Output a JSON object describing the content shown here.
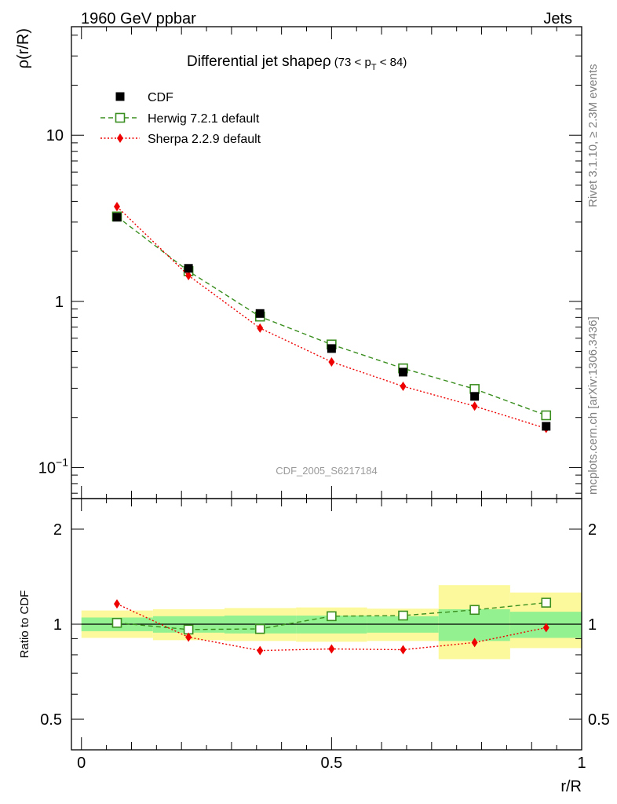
{
  "header": {
    "left": "1960 GeV ppbar",
    "right": "Jets"
  },
  "side_labels": {
    "top": "Rivet 3.1.10, ≥ 2.3M events",
    "bottom": "mcplots.cern.ch [arXiv:1306.3436]"
  },
  "chart_data": [
    {
      "type": "line",
      "panel": "main",
      "title": "Differential jet shapeρ",
      "title_suffix": "(73 < p",
      "title_sub": "T",
      "title_end": " < 84)",
      "ylabel": "ρ(r/R)",
      "watermark": "CDF_2005_S6217184",
      "yscale": "log",
      "ylim": [
        0.065,
        45
      ],
      "xlim": [
        -0.02,
        1.0
      ],
      "yticks": [
        {
          "value": 10,
          "label": "10"
        },
        {
          "value": 1,
          "label": "1"
        },
        {
          "value": 0.1,
          "label": "10",
          "exp": "−1"
        }
      ],
      "legend_position": "top-left",
      "series": [
        {
          "name": "CDF",
          "color": "#000000",
          "style": "square-filled",
          "x": [
            0.071,
            0.214,
            0.357,
            0.5,
            0.643,
            0.786,
            0.929
          ],
          "y": [
            3.21,
            1.58,
            0.845,
            0.52,
            0.375,
            0.268,
            0.177
          ]
        },
        {
          "name": "Herwig 7.2.1 default",
          "color": "#3a8e1f",
          "style": "square-open-dashed",
          "x": [
            0.071,
            0.214,
            0.357,
            0.5,
            0.643,
            0.786,
            0.929
          ],
          "y": [
            3.24,
            1.52,
            0.81,
            0.55,
            0.395,
            0.297,
            0.206
          ]
        },
        {
          "name": "Sherpa 2.2.9 default",
          "color": "#ee0000",
          "style": "diamond-dotted",
          "x": [
            0.071,
            0.214,
            0.357,
            0.5,
            0.643,
            0.786,
            0.929
          ],
          "y": [
            3.72,
            1.43,
            0.69,
            0.432,
            0.308,
            0.234,
            0.172
          ]
        }
      ]
    },
    {
      "type": "line",
      "panel": "ratio",
      "ylabel": "Ratio to CDF",
      "xlabel": "r/R",
      "yscale": "log",
      "ylim": [
        0.4,
        2.5
      ],
      "xlim": [
        -0.02,
        1.0
      ],
      "yticks": [
        {
          "value": 2,
          "label": "2"
        },
        {
          "value": 1,
          "label": "1"
        },
        {
          "value": 0.5,
          "label": "0.5"
        }
      ],
      "xticks": [
        {
          "value": 0,
          "label": "0"
        },
        {
          "value": 0.5,
          "label": "0.5"
        },
        {
          "value": 1,
          "label": "1"
        }
      ],
      "bands": [
        {
          "x0": 0.0,
          "x1": 0.143,
          "yellow": [
            0.905,
            1.105
          ],
          "green": [
            0.95,
            1.05
          ]
        },
        {
          "x0": 0.143,
          "x1": 0.286,
          "yellow": [
            0.89,
            1.115
          ],
          "green": [
            0.94,
            1.06
          ]
        },
        {
          "x0": 0.286,
          "x1": 0.429,
          "yellow": [
            0.885,
            1.125
          ],
          "green": [
            0.935,
            1.065
          ]
        },
        {
          "x0": 0.429,
          "x1": 0.571,
          "yellow": [
            0.88,
            1.13
          ],
          "green": [
            0.935,
            1.065
          ]
        },
        {
          "x0": 0.571,
          "x1": 0.714,
          "yellow": [
            0.885,
            1.12
          ],
          "green": [
            0.94,
            1.06
          ]
        },
        {
          "x0": 0.714,
          "x1": 0.857,
          "yellow": [
            0.775,
            1.33
          ],
          "green": [
            0.885,
            1.115
          ]
        },
        {
          "x0": 0.857,
          "x1": 1.0,
          "yellow": [
            0.84,
            1.26
          ],
          "green": [
            0.905,
            1.095
          ]
        }
      ],
      "series": [
        {
          "name": "Herwig 7.2.1 default",
          "color": "#3a8e1f",
          "style": "square-open-dashed",
          "x": [
            0.071,
            0.214,
            0.357,
            0.5,
            0.643,
            0.786,
            0.929
          ],
          "y": [
            1.01,
            0.962,
            0.966,
            1.06,
            1.065,
            1.11,
            1.17
          ]
        },
        {
          "name": "Sherpa 2.2.9 default",
          "color": "#ee0000",
          "style": "diamond-dotted",
          "x": [
            0.071,
            0.214,
            0.357,
            0.5,
            0.643,
            0.786,
            0.929
          ],
          "y": [
            1.16,
            0.91,
            0.825,
            0.835,
            0.83,
            0.875,
            0.975
          ]
        }
      ]
    }
  ]
}
